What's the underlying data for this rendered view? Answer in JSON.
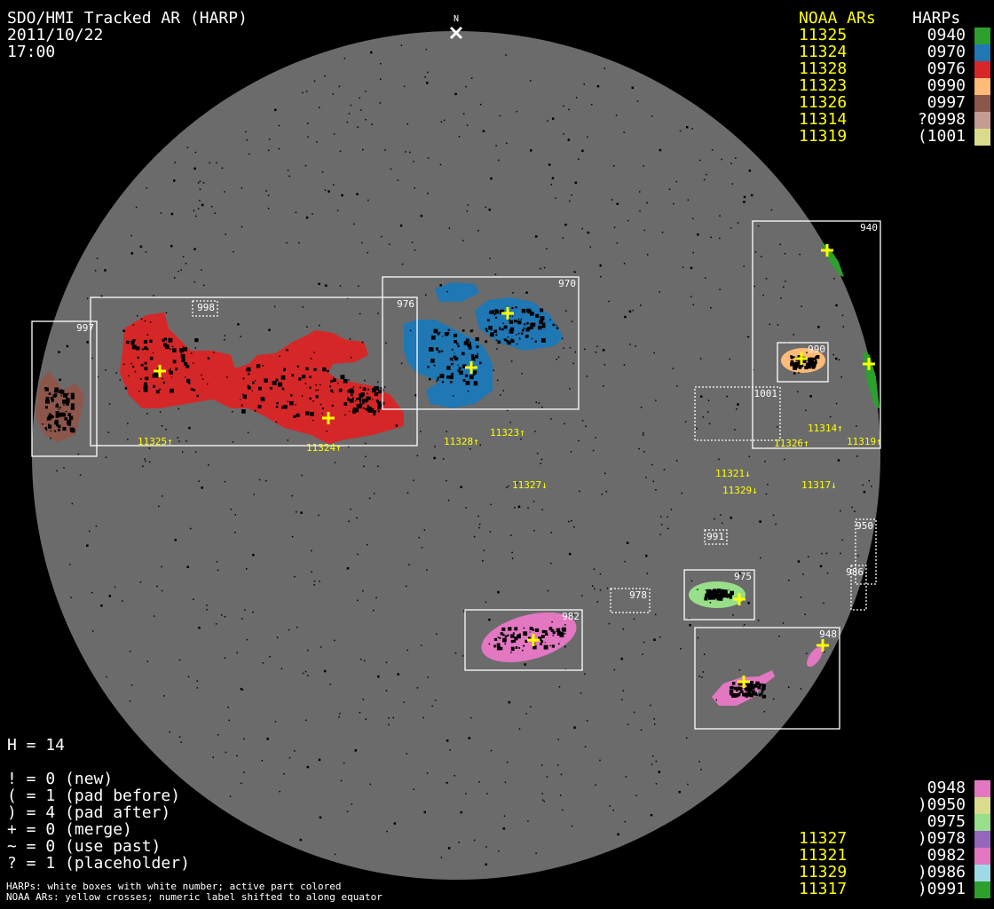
{
  "header": {
    "title": "SDO/HMI Tracked AR (HARP)",
    "date": "2011/10/22",
    "time": "17:00",
    "north_label": "N"
  },
  "legend_top": {
    "noaa_header": "NOAA ARs",
    "harp_header": "HARPs",
    "rows": [
      {
        "noaa": "11325",
        "harp": "0940",
        "color": "#2ca02c"
      },
      {
        "noaa": "11324",
        "harp": "0970",
        "color": "#1f77b4"
      },
      {
        "noaa": "11328",
        "harp": "0976",
        "color": "#d62728"
      },
      {
        "noaa": "11323",
        "harp": "0990",
        "color": "#ffbb78"
      },
      {
        "noaa": "11326",
        "harp": "0997",
        "color": "#8c564b"
      },
      {
        "noaa": "11314",
        "harp": "?0998",
        "color": "#c49c94"
      },
      {
        "noaa": "11319",
        "harp": "(1001",
        "color": "#dbdb8d"
      }
    ]
  },
  "legend_bottom": {
    "rows": [
      {
        "noaa": "",
        "harp": "0948",
        "color": "#e377c2"
      },
      {
        "noaa": "",
        "harp": ")0950",
        "color": "#dbdb8d"
      },
      {
        "noaa": "",
        "harp": "0975",
        "color": "#98df8a"
      },
      {
        "noaa": "11327",
        "harp": ")0978",
        "color": "#9467bd"
      },
      {
        "noaa": "11321",
        "harp": "0982",
        "color": "#e377c2"
      },
      {
        "noaa": "11329",
        "harp": ")0986",
        "color": "#9edae5"
      },
      {
        "noaa": "11317",
        "harp": ")0991",
        "color": "#2ca02c"
      }
    ]
  },
  "stats": {
    "h_count": "H = 14",
    "lines": [
      "! = 0 (new)",
      "( = 1 (pad before)",
      ") = 4 (pad after)",
      "+ = 0 (merge)",
      "~ = 0 (use past)",
      "? = 1 (placeholder)"
    ]
  },
  "footnotes": [
    "HARPs: white boxes with white number; active part colored",
    "NOAA ARs: yellow crosses; numeric label shifted to along equator"
  ],
  "harp_boxes": [
    {
      "id": "997",
      "style": "solid"
    },
    {
      "id": "976",
      "style": "solid"
    },
    {
      "id": "970",
      "style": "solid"
    },
    {
      "id": "940",
      "style": "solid"
    },
    {
      "id": "990",
      "style": "solid"
    },
    {
      "id": "975",
      "style": "solid"
    },
    {
      "id": "982",
      "style": "solid"
    },
    {
      "id": "948",
      "style": "solid"
    },
    {
      "id": "998",
      "style": "dotted"
    },
    {
      "id": "1001",
      "style": "dotted"
    },
    {
      "id": "991",
      "style": "dotted"
    },
    {
      "id": "978",
      "style": "dotted"
    },
    {
      "id": "950",
      "style": "dotted"
    },
    {
      "id": "986",
      "style": "dotted"
    }
  ],
  "noaa_labels": [
    "11325↑",
    "11324↑",
    "11328↑",
    "11323↑",
    "11327↓",
    "11321↓",
    "11329↓",
    "11317↓",
    "11326↑",
    "11314↑",
    "11319↑"
  ],
  "colors": {
    "disk": "#6b6b6b",
    "background": "#000000",
    "noaa_text": "#ffff00",
    "box": "#ffffff"
  }
}
